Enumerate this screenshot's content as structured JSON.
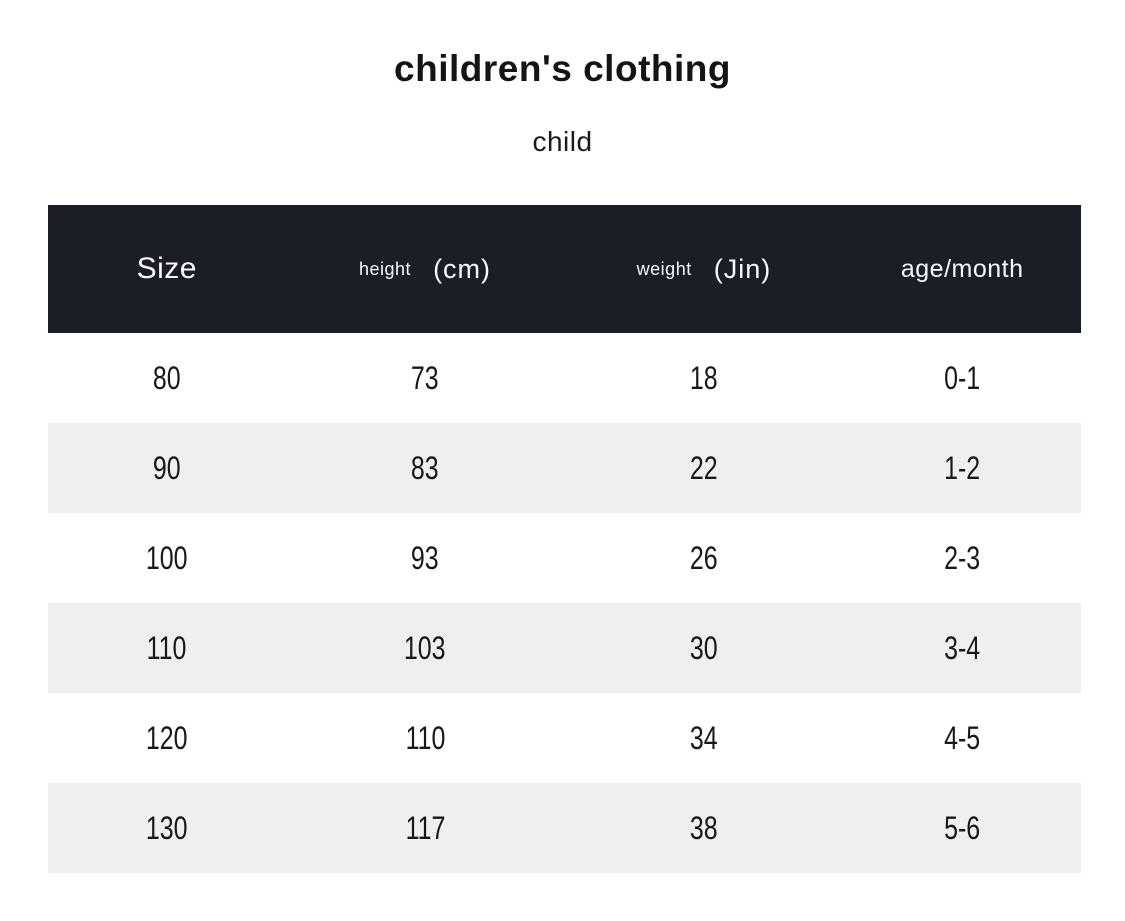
{
  "page": {
    "title": "children's clothing",
    "subtitle": "child"
  },
  "colors": {
    "header_bg": "#1b1d27",
    "header_text": "#fafafa",
    "row_bg": "#ffffff",
    "row_alt_bg": "#efefef",
    "body_text": "#181818"
  },
  "table": {
    "header": {
      "size": "Size",
      "height_label": "height",
      "height_unit": "(cm)",
      "weight_label": "weight",
      "weight_unit": "(Jin)",
      "age": "age/month"
    },
    "rows": [
      [
        "80",
        "73",
        "18",
        "0-1"
      ],
      [
        "90",
        "83",
        "22",
        "1-2"
      ],
      [
        "100",
        "93",
        "26",
        "2-3"
      ],
      [
        "110",
        "103",
        "30",
        "3-4"
      ],
      [
        "120",
        "110",
        "34",
        "4-5"
      ],
      [
        "130",
        "117",
        "38",
        "5-6"
      ]
    ]
  },
  "chart_data": {
    "type": "table",
    "title": "children's clothing",
    "subtitle": "child",
    "columns": [
      "Size",
      "height (cm)",
      "weight (Jin)",
      "age/month"
    ],
    "rows": [
      [
        "80",
        "73",
        "18",
        "0-1"
      ],
      [
        "90",
        "83",
        "22",
        "1-2"
      ],
      [
        "100",
        "93",
        "26",
        "2-3"
      ],
      [
        "110",
        "103",
        "30",
        "3-4"
      ],
      [
        "120",
        "110",
        "34",
        "4-5"
      ],
      [
        "130",
        "117",
        "38",
        "5-6"
      ]
    ],
    "layout": {
      "header_style": "dark",
      "zebra_striping": true,
      "text_alignment": "center"
    }
  }
}
